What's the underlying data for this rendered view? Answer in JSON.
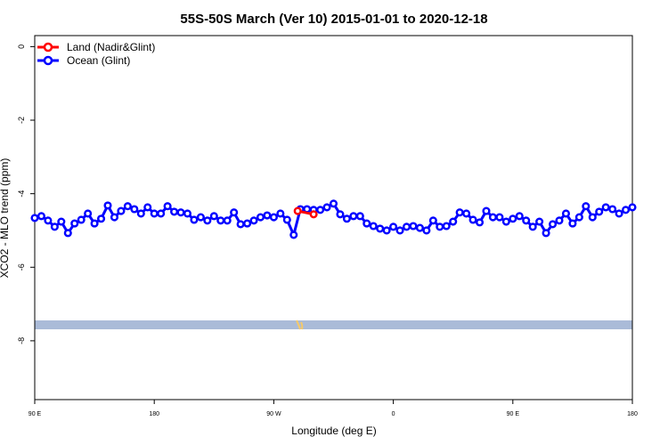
{
  "chart_data": {
    "type": "line",
    "title": "55S-50S March (Ver 10)   2015-01-01 to 2020-12-18",
    "x_label": "Longitude (deg E)",
    "y_label": "XCO2 - MLO trend (ppm)",
    "xlim": [
      90,
      540
    ],
    "ylim": [
      -9.6,
      0.3
    ],
    "xticks": [
      {
        "value": 90,
        "label": "90 E"
      },
      180,
      {
        "value": 270,
        "label": "90 W"
      },
      {
        "value": 360,
        "label": "0"
      },
      {
        "value": 450,
        "label": "90 E"
      },
      {
        "value": 540,
        "label": "180"
      }
    ],
    "yticks": [
      0,
      -2,
      -4,
      -6,
      -8
    ],
    "legend": "top-left",
    "series": [
      {
        "name": "Land (Nadir&Glint)",
        "color": "#ff0000",
        "x": [
          288,
          300
        ],
        "values": [
          -4.47,
          -4.56
        ]
      },
      {
        "name": "Ocean (Glint)",
        "color": "#0000ff",
        "x": [
          90,
          95,
          100,
          105,
          110,
          115,
          120,
          125,
          130,
          135,
          140,
          145,
          150,
          155,
          160,
          165,
          170,
          175,
          180,
          185,
          190,
          195,
          200,
          205,
          210,
          215,
          220,
          225,
          230,
          235,
          240,
          245,
          250,
          255,
          260,
          265,
          270,
          275,
          280,
          285,
          290,
          295,
          300,
          305,
          310,
          315,
          320,
          325,
          330,
          335,
          340,
          345,
          350,
          355,
          360,
          365,
          370,
          375,
          380,
          385,
          390,
          395,
          400,
          405,
          410,
          415,
          420,
          425,
          430,
          435,
          440,
          445,
          450,
          455,
          460,
          465,
          470,
          475,
          480,
          485,
          490,
          495,
          500,
          505,
          510,
          515,
          520,
          525,
          530,
          535,
          540
        ],
        "values": [
          -4.66,
          -4.61,
          -4.73,
          -4.9,
          -4.76,
          -5.07,
          -4.81,
          -4.71,
          -4.54,
          -4.81,
          -4.68,
          -4.32,
          -4.64,
          -4.47,
          -4.34,
          -4.42,
          -4.54,
          -4.37,
          -4.54,
          -4.54,
          -4.34,
          -4.49,
          -4.51,
          -4.54,
          -4.71,
          -4.64,
          -4.73,
          -4.61,
          -4.73,
          -4.73,
          -4.51,
          -4.83,
          -4.81,
          -4.73,
          -4.64,
          -4.59,
          -4.64,
          -4.54,
          -4.71,
          -5.12,
          -4.42,
          -4.42,
          -4.44,
          -4.44,
          -4.37,
          -4.27,
          -4.56,
          -4.68,
          -4.61,
          -4.61,
          -4.81,
          -4.88,
          -4.95,
          -5.0,
          -4.9,
          -5.0,
          -4.9,
          -4.88,
          -4.93,
          -5.0,
          -4.73,
          -4.9,
          -4.88,
          -4.76,
          -4.51,
          -4.54,
          -4.71,
          -4.78,
          -4.47,
          -4.64,
          -4.64,
          -4.76,
          -4.68,
          -4.61,
          -4.73,
          -4.9,
          -4.76,
          -5.07,
          -4.83,
          -4.73,
          -4.54,
          -4.81,
          -4.64,
          -4.34,
          -4.64,
          -4.49,
          -4.37,
          -4.42,
          -4.54,
          -4.44,
          -4.37
        ]
      }
    ]
  }
}
